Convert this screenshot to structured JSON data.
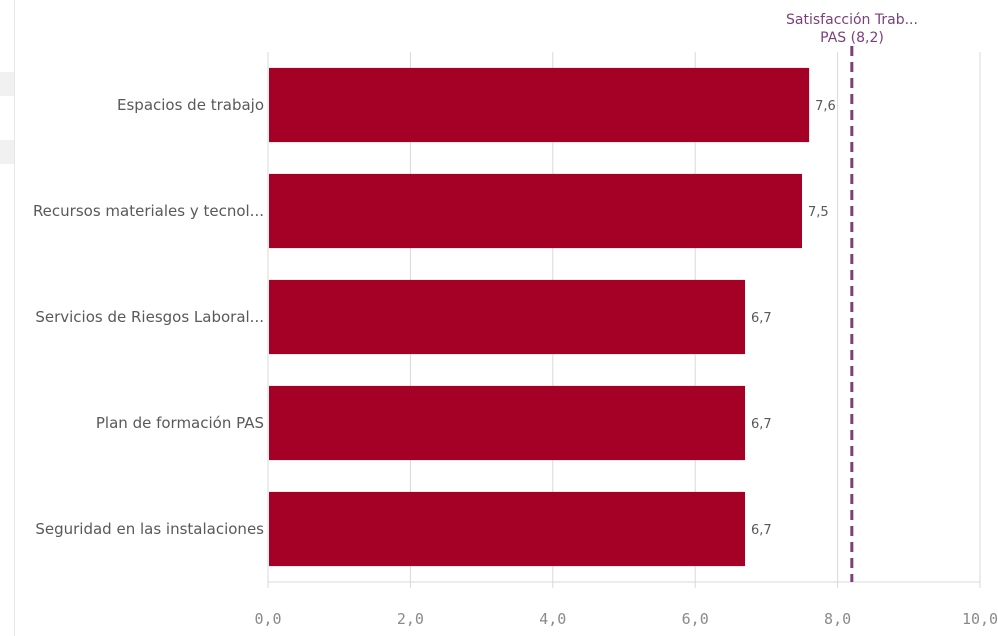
{
  "colors": {
    "bar": "#a50026",
    "reference_line": "#7b3f7b",
    "grid": "#d9d9d9",
    "text": "#595959",
    "tick_text": "#8a8a8a"
  },
  "chart_data": {
    "type": "bar",
    "orientation": "horizontal",
    "categories": [
      "Espacios de trabajo",
      "Recursos materiales y tecnol...",
      "Servicios de Riesgos Laboral...",
      "Plan de formación PAS",
      "Seguridad en las instalaciones"
    ],
    "values": [
      7.6,
      7.5,
      6.7,
      6.7,
      6.7
    ],
    "value_labels": [
      "7,6",
      "7,5",
      "6,7",
      "6,7",
      "6,7"
    ],
    "xlim": [
      0,
      10
    ],
    "x_ticks": [
      0,
      2,
      4,
      6,
      8,
      10
    ],
    "x_tick_labels": [
      "0,0",
      "2,0",
      "4,0",
      "6,0",
      "8,0",
      "10,0"
    ],
    "grid": true,
    "reference_line": {
      "value": 8.2,
      "label_line1": "Satisfacción Trab...",
      "label_line2": "PAS (8,2)",
      "style": "dashed"
    }
  }
}
